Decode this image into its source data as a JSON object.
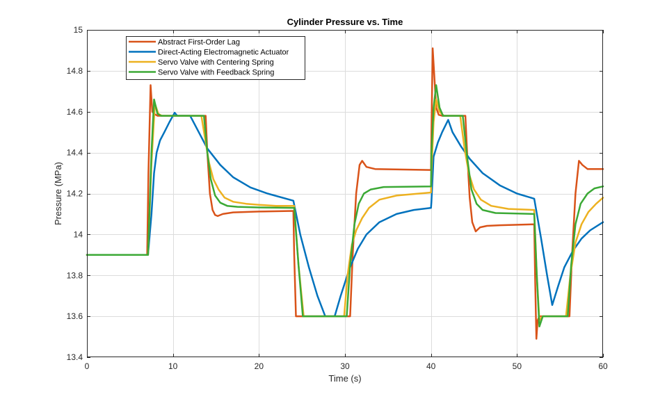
{
  "chart_data": {
    "type": "line",
    "title": "Cylinder Pressure vs. Time",
    "xlabel": "Time (s)",
    "ylabel": "Pressure (MPa)",
    "xlim": [
      0,
      60
    ],
    "ylim": [
      13.4,
      15
    ],
    "xticks": [
      0,
      10,
      20,
      30,
      40,
      50,
      60
    ],
    "xtick_labels": [
      "0",
      "10",
      "20",
      "30",
      "40",
      "50",
      "60"
    ],
    "yticks": [
      13.4,
      13.6,
      13.8,
      14,
      14.2,
      14.4,
      14.6,
      14.8,
      15
    ],
    "ytick_labels": [
      "13.4",
      "13.6",
      "13.8",
      "14",
      "14.2",
      "14.4",
      "14.6",
      "14.8",
      "15"
    ],
    "grid": true,
    "legend_position": "top-left",
    "series": [
      {
        "name": "Abstract First-Order Lag",
        "color": "#D95319",
        "x": [
          0,
          7.0,
          7.15,
          7.4,
          7.6,
          7.8,
          8.2,
          13.8,
          14.0,
          14.3,
          14.6,
          14.9,
          15.2,
          15.8,
          17,
          20,
          24,
          24.1,
          24.3,
          30.6,
          30.9,
          31.3,
          31.7,
          32.0,
          32.5,
          33.5,
          40,
          40.05,
          40.2,
          40.35,
          40.6,
          40.9,
          41.3,
          44.0,
          44.2,
          44.5,
          44.8,
          45.2,
          45.7,
          46.5,
          48,
          52,
          52.1,
          52.25,
          52.4,
          52.6,
          56.1,
          56.4,
          56.8,
          57.2,
          57.6,
          58.2,
          59,
          60
        ],
        "y": [
          13.9,
          13.9,
          14.3,
          14.73,
          14.6,
          14.59,
          14.58,
          14.58,
          14.4,
          14.2,
          14.12,
          14.095,
          14.09,
          14.1,
          14.108,
          14.112,
          14.115,
          13.9,
          13.6,
          13.6,
          13.9,
          14.2,
          14.34,
          14.36,
          14.33,
          14.32,
          14.315,
          14.5,
          14.91,
          14.8,
          14.62,
          14.585,
          14.58,
          14.58,
          14.4,
          14.18,
          14.06,
          14.015,
          14.035,
          14.042,
          14.045,
          14.05,
          13.8,
          13.49,
          13.58,
          13.6,
          13.6,
          13.9,
          14.2,
          14.36,
          14.34,
          14.32,
          14.32,
          14.32
        ]
      },
      {
        "name": "Direct-Acting Electromagnetic Actuator",
        "color": "#0072BD",
        "x": [
          0,
          7.1,
          7.5,
          7.8,
          8.1,
          8.5,
          9.0,
          9.6,
          10.2,
          10.5,
          11.5,
          12.0,
          13.0,
          14.0,
          15.5,
          17,
          19,
          21,
          24.0,
          24.8,
          25.8,
          26.8,
          27.7,
          28.8,
          29.5,
          30.5,
          31.5,
          32.5,
          34,
          36,
          38,
          40.0,
          40.05,
          40.3,
          40.8,
          41.3,
          42.0,
          42.5,
          43.5,
          44.5,
          46,
          48,
          50,
          52.0,
          52.8,
          53.5,
          54.1,
          54.8,
          55.5,
          56.5,
          57.5,
          58.5,
          60
        ],
        "y": [
          13.9,
          13.9,
          14.1,
          14.3,
          14.4,
          14.46,
          14.5,
          14.55,
          14.595,
          14.58,
          14.58,
          14.58,
          14.5,
          14.42,
          14.34,
          14.28,
          14.23,
          14.2,
          14.165,
          14.0,
          13.84,
          13.7,
          13.6,
          13.6,
          13.7,
          13.83,
          13.93,
          14.0,
          14.06,
          14.1,
          14.12,
          14.13,
          14.16,
          14.38,
          14.45,
          14.5,
          14.56,
          14.5,
          14.43,
          14.37,
          14.3,
          14.24,
          14.2,
          14.175,
          13.98,
          13.8,
          13.655,
          13.75,
          13.84,
          13.92,
          13.98,
          14.02,
          14.06
        ]
      },
      {
        "name": "Servo Valve with Centering Spring",
        "color": "#EDB120",
        "x": [
          0,
          7.1,
          7.5,
          7.9,
          8.3,
          8.7,
          13.3,
          13.8,
          14.2,
          14.7,
          15.3,
          16,
          17,
          18.5,
          20,
          22,
          24.1,
          24.6,
          25.2,
          29.9,
          30.3,
          30.8,
          31.3,
          32,
          32.8,
          34,
          36,
          40.0,
          40.05,
          40.3,
          40.6,
          41.0,
          41.5,
          43.4,
          43.9,
          44.4,
          45,
          45.8,
          47,
          49,
          52.0,
          52.3,
          52.6,
          53.0,
          55.7,
          56.2,
          56.8,
          57.5,
          58.3,
          59.2,
          60
        ],
        "y": [
          13.9,
          13.9,
          14.35,
          14.64,
          14.59,
          14.58,
          14.58,
          14.45,
          14.35,
          14.27,
          14.22,
          14.18,
          14.16,
          14.15,
          14.145,
          14.14,
          14.14,
          13.85,
          13.6,
          13.6,
          13.8,
          13.95,
          14.02,
          14.08,
          14.13,
          14.17,
          14.19,
          14.205,
          14.3,
          14.55,
          14.66,
          14.6,
          14.58,
          14.58,
          14.42,
          14.3,
          14.22,
          14.17,
          14.14,
          14.125,
          14.12,
          13.8,
          13.58,
          13.6,
          13.6,
          13.8,
          13.96,
          14.05,
          14.11,
          14.15,
          14.18
        ]
      },
      {
        "name": "Servo Valve with Feedback Spring",
        "color": "#3BA935",
        "x": [
          0,
          7.1,
          7.5,
          7.8,
          8.2,
          8.6,
          13.6,
          14.0,
          14.4,
          14.9,
          15.5,
          16.3,
          17.5,
          20,
          24.1,
          24.6,
          25.1,
          30.2,
          30.6,
          31.1,
          31.6,
          32.2,
          33,
          34.5,
          40.0,
          40.05,
          40.3,
          40.6,
          41.0,
          41.4,
          43.7,
          44.2,
          44.7,
          45.3,
          46.0,
          47.5,
          52.0,
          52.3,
          52.6,
          53.0,
          55.9,
          56.3,
          56.8,
          57.4,
          58.2,
          59,
          60
        ],
        "y": [
          13.9,
          13.9,
          14.4,
          14.66,
          14.59,
          14.58,
          14.58,
          14.4,
          14.27,
          14.19,
          14.155,
          14.14,
          14.135,
          14.132,
          14.13,
          13.85,
          13.6,
          13.6,
          13.85,
          14.05,
          14.15,
          14.2,
          14.22,
          14.232,
          14.235,
          14.4,
          14.62,
          14.73,
          14.62,
          14.58,
          14.58,
          14.38,
          14.22,
          14.15,
          14.12,
          14.105,
          14.1,
          13.8,
          13.55,
          13.6,
          13.6,
          13.85,
          14.05,
          14.15,
          14.2,
          14.225,
          14.235
        ]
      }
    ]
  }
}
